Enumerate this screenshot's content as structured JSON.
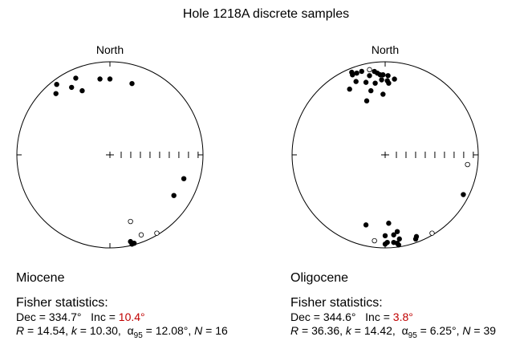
{
  "title": "Hole 1218A discrete samples",
  "colors": {
    "highlight": "#c00000",
    "ink": "#000000"
  },
  "chart_data": [
    {
      "type": "scatter",
      "subtype": "equal-area stereonet",
      "north_label": "North",
      "period": "Miocene",
      "stats_heading": "Fisher statistics:",
      "dec_text": "Dec = 334.7°",
      "inc_label": "Inc = ",
      "inc_value": "10.4°",
      "r_label": "R",
      "r_text": " = 14.54, ",
      "k_label": "k",
      "k_text": " = 10.30, ",
      "alpha_label": "α",
      "alpha_sub": "95",
      "alpha_text": " = 12.08°, ",
      "n_label": "N",
      "n_text": " = 16",
      "points": [
        {
          "x": -0.572,
          "y": 0.757,
          "filled": true
        },
        {
          "x": -0.58,
          "y": 0.658,
          "filled": true
        },
        {
          "x": -0.412,
          "y": 0.725,
          "filled": true
        },
        {
          "x": -0.367,
          "y": 0.824,
          "filled": true
        },
        {
          "x": -0.298,
          "y": 0.689,
          "filled": true
        },
        {
          "x": -0.107,
          "y": 0.815,
          "filled": true
        },
        {
          "x": 0.0,
          "y": 0.815,
          "filled": true
        },
        {
          "x": 0.237,
          "y": 0.766,
          "filled": true
        },
        {
          "x": 0.794,
          "y": -0.256,
          "filled": true
        },
        {
          "x": 0.687,
          "y": -0.437,
          "filled": true
        },
        {
          "x": 0.221,
          "y": -0.716,
          "filled": false
        },
        {
          "x": 0.336,
          "y": -0.86,
          "filled": false
        },
        {
          "x": 0.504,
          "y": -0.842,
          "filled": false
        },
        {
          "x": 0.221,
          "y": -0.932,
          "filled": true
        },
        {
          "x": 0.237,
          "y": -0.959,
          "filled": true
        },
        {
          "x": 0.26,
          "y": -0.95,
          "filled": true
        }
      ]
    },
    {
      "type": "scatter",
      "subtype": "equal-area stereonet",
      "north_label": "North",
      "period": "Oligocene",
      "stats_heading": "Fisher statistics:",
      "dec_text": "Dec = 344.6°",
      "inc_label": "Inc = ",
      "inc_value": "3.8°",
      "r_label": "R",
      "r_text": " = 36.36, ",
      "k_label": "k",
      "k_text": " = 14.42, ",
      "alpha_label": "α",
      "alpha_sub": "95",
      "alpha_text": " = 6.25°, ",
      "n_label": "N",
      "n_text": " = 39",
      "points": [
        {
          "x": -0.359,
          "y": 0.887,
          "filled": true
        },
        {
          "x": -0.351,
          "y": 0.86,
          "filled": true
        },
        {
          "x": -0.305,
          "y": 0.878,
          "filled": true
        },
        {
          "x": -0.252,
          "y": 0.897,
          "filled": true
        },
        {
          "x": -0.168,
          "y": 0.915,
          "filled": false
        },
        {
          "x": -0.115,
          "y": 0.896,
          "filled": true
        },
        {
          "x": -0.084,
          "y": 0.878,
          "filled": true
        },
        {
          "x": -0.168,
          "y": 0.851,
          "filled": true
        },
        {
          "x": -0.053,
          "y": 0.86,
          "filled": true
        },
        {
          "x": -0.023,
          "y": 0.86,
          "filled": true
        },
        {
          "x": 0.031,
          "y": 0.851,
          "filled": true
        },
        {
          "x": -0.038,
          "y": 0.806,
          "filled": true
        },
        {
          "x": 0.023,
          "y": 0.796,
          "filled": true
        },
        {
          "x": -0.313,
          "y": 0.788,
          "filled": true
        },
        {
          "x": -0.206,
          "y": 0.779,
          "filled": true
        },
        {
          "x": -0.107,
          "y": 0.77,
          "filled": true
        },
        {
          "x": 0.038,
          "y": 0.77,
          "filled": true
        },
        {
          "x": 0.1,
          "y": 0.814,
          "filled": true
        },
        {
          "x": -0.382,
          "y": 0.706,
          "filled": true
        },
        {
          "x": -0.153,
          "y": 0.689,
          "filled": true
        },
        {
          "x": -0.023,
          "y": 0.651,
          "filled": true
        },
        {
          "x": -0.198,
          "y": 0.58,
          "filled": true
        },
        {
          "x": 0.885,
          "y": -0.104,
          "filled": false
        },
        {
          "x": 0.84,
          "y": -0.427,
          "filled": true
        },
        {
          "x": -0.206,
          "y": -0.753,
          "filled": true
        },
        {
          "x": 0.038,
          "y": -0.735,
          "filled": true
        },
        {
          "x": 0.504,
          "y": -0.842,
          "filled": false
        },
        {
          "x": 0.336,
          "y": -0.878,
          "filled": true
        },
        {
          "x": 0.328,
          "y": -0.905,
          "filled": true
        },
        {
          "x": 0.13,
          "y": -0.825,
          "filled": true
        },
        {
          "x": 0.092,
          "y": -0.86,
          "filled": true
        },
        {
          "x": 0.0,
          "y": -0.869,
          "filled": true
        },
        {
          "x": -0.115,
          "y": -0.923,
          "filled": false
        },
        {
          "x": 0.153,
          "y": -0.904,
          "filled": true
        },
        {
          "x": 0.092,
          "y": -0.941,
          "filled": true
        },
        {
          "x": 0.023,
          "y": -0.941,
          "filled": true
        },
        {
          "x": 0.0,
          "y": -0.959,
          "filled": true
        },
        {
          "x": 0.13,
          "y": -0.95,
          "filled": true
        },
        {
          "x": 0.145,
          "y": -0.968,
          "filled": true
        }
      ]
    }
  ]
}
